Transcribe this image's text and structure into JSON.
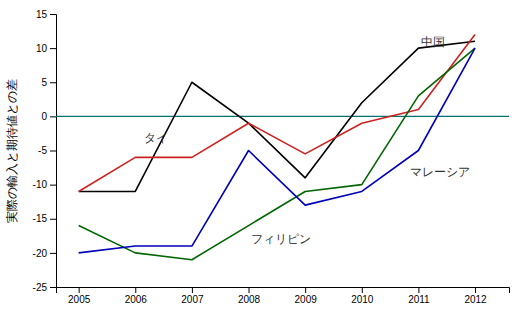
{
  "chart_data": {
    "type": "line",
    "ylabel": "実際の輸入と期待値との差",
    "x": [
      2005,
      2006,
      2007,
      2008,
      2009,
      2010,
      2011,
      2012
    ],
    "series": [
      {
        "color": "#000000",
        "values": [
          -11,
          -11,
          5,
          -1,
          -9,
          2,
          10,
          11
        ]
      },
      {
        "color": "#cc2222",
        "values": [
          -11,
          -6,
          -6,
          -1,
          -5.5,
          -1,
          1,
          12
        ]
      },
      {
        "color": "#006600",
        "values": [
          -16,
          -20,
          -21,
          -16,
          -11,
          -10,
          3,
          10
        ]
      },
      {
        "color": "#0000bb",
        "values": [
          -20,
          -19,
          -19,
          -5,
          -13,
          -11,
          -5,
          10
        ]
      }
    ],
    "reference_lines": [
      {
        "y": 0,
        "color": "#007070"
      }
    ],
    "annotations": [
      {
        "text": "中国",
        "x": 2011.05,
        "y": 10.3
      },
      {
        "text": "タイ",
        "x": 2006.15,
        "y": -3.8
      },
      {
        "text": "フィリピン",
        "x": 2008.05,
        "y": -18.5
      },
      {
        "text": "マレーシア",
        "x": 2010.85,
        "y": -8.8
      }
    ],
    "xlim": [
      2004.6,
      2012.6
    ],
    "ylim": [
      -25,
      15
    ],
    "xticks": [
      2005,
      2006,
      2007,
      2008,
      2009,
      2010,
      2011,
      2012
    ],
    "yticks": [
      -25,
      -20,
      -15,
      -10,
      -5,
      0,
      5,
      10,
      15
    ]
  }
}
